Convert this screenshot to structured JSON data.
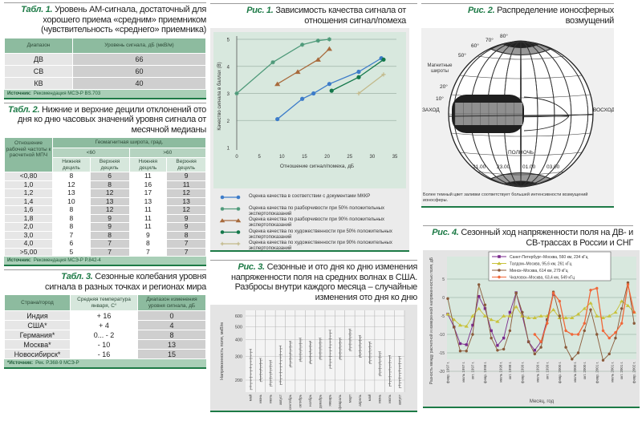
{
  "tab1": {
    "num": "Табл. 1.",
    "title": "Уровень АМ-сигнала, достаточный для хорошего приема «средним» приемником (чувствительность «среднего» приемника)",
    "headers": [
      "Диапазон",
      "Уровень сигнала, дБ (мкВ/м)"
    ],
    "rows": [
      [
        "ДВ",
        "66"
      ],
      [
        "СВ",
        "60"
      ],
      [
        "КВ",
        "40"
      ]
    ],
    "source_label": "Источник:",
    "source": "Рекомендация МСЭ-Р BS.703"
  },
  "tab2": {
    "num": "Табл. 2.",
    "title": "Нижние и верхние децили отклонений ото дня ко дню часовых значений уровня сигнала от месячной медианы",
    "row_header": "Отношение рабочей частоты к расчетной МПЧ",
    "group_header": "Геомагнитная широта, град.",
    "sub_groups": [
      "<60",
      ">60"
    ],
    "cols": [
      "Нижняя дециль",
      "Верхняя дециль",
      "Нижняя дециль",
      "Верхняя дециль"
    ],
    "rows": [
      [
        "<0,80",
        "8",
        "6",
        "11",
        "9"
      ],
      [
        "1,0",
        "12",
        "8",
        "16",
        "11"
      ],
      [
        "1,2",
        "13",
        "12",
        "17",
        "12"
      ],
      [
        "1,4",
        "10",
        "13",
        "13",
        "13"
      ],
      [
        "1,6",
        "8",
        "12",
        "11",
        "12"
      ],
      [
        "1,8",
        "8",
        "9",
        "11",
        "9"
      ],
      [
        "2,0",
        "8",
        "9",
        "11",
        "9"
      ],
      [
        "3,0",
        "7",
        "8",
        "9",
        "8"
      ],
      [
        "4,0",
        "6",
        "7",
        "8",
        "7"
      ],
      [
        ">5,00",
        "5",
        "7",
        "7",
        "7"
      ]
    ],
    "source_label": "Источник:",
    "source": "Рекомендация МСЭ-Р P.842-4"
  },
  "tab3": {
    "num": "Табл. 3.",
    "title": "Сезонные колебания уровня сигнала в разных точках и регионах мира",
    "headers": [
      "Страна/город",
      "Средняя температура января, С°",
      "Диапазон изменения уровня сигнала, дБ"
    ],
    "rows": [
      [
        "Индия",
        "+ 16",
        "0"
      ],
      [
        "США*",
        "+ 4",
        "4"
      ],
      [
        "Германия*",
        "0... - 2",
        "8"
      ],
      [
        "Москва*",
        "- 10",
        "13"
      ],
      [
        "Новосибирск*",
        "- 16",
        "15"
      ]
    ],
    "source_label": "*Источник:",
    "source": "Рек. P.368-9 МСЭ-Р"
  },
  "fig2": {
    "num": "Рис. 2.",
    "title": "Распределение ионосферных возмущений",
    "lat_labels": [
      "80°",
      "70°",
      "60°",
      "50°",
      "20°",
      "10°"
    ],
    "lat_title": "Магнитные широты",
    "west": "ЗАХОД",
    "east": "ВОСХОД",
    "midnight": "ПОЛНОЧЬ",
    "times": [
      "21.00",
      "23.00",
      "01.00",
      "03.00"
    ],
    "caption": "Более темный цвет заливки соответствует большей интенсивности возмущений ионосферы."
  },
  "chart_data": [
    {
      "id": "fig1",
      "type": "line",
      "num": "Рис. 1.",
      "title": "Зависимость качества сигнала от отношения сигнал/помеха",
      "xlabel": "Отношение сигнал/помеха, дБ",
      "ylabel": "Качество сигнала в баллах (B)",
      "xlim": [
        0,
        35
      ],
      "ylim": [
        1,
        5
      ],
      "xticks": [
        "0",
        "5",
        "10",
        "15",
        "20",
        "25",
        "30",
        "35"
      ],
      "yticks": [
        "1",
        "2",
        "3",
        "4",
        "5"
      ],
      "series": [
        {
          "name": "Оценка качества в соответствии с документами МККР",
          "color": "#3d7cc9",
          "marker": "circle",
          "points": [
            [
              9,
              2.05
            ],
            [
              14.5,
              2.8
            ],
            [
              17,
              3.0
            ],
            [
              20.5,
              3.35
            ],
            [
              27,
              3.8
            ],
            [
              32,
              4.3
            ]
          ]
        },
        {
          "name": "Оценка качества по разборчивости при 50% положительных экспертопоказаний",
          "color": "#4f9a7a",
          "marker": "star",
          "points": [
            [
              0,
              3.0
            ],
            [
              8,
              4.15
            ],
            [
              14.5,
              4.8
            ],
            [
              18,
              4.95
            ],
            [
              20.5,
              5.0
            ]
          ]
        },
        {
          "name": "Оценка качества по разборчивости при 90% положительных экспертопоказаний",
          "color": "#a86a3c",
          "marker": "triangle",
          "points": [
            [
              9,
              3.35
            ],
            [
              13.5,
              3.8
            ],
            [
              18,
              4.25
            ],
            [
              20.5,
              4.65
            ]
          ]
        },
        {
          "name": "Оценка качества по художественности при 50% положительных экспертопоказаний",
          "color": "#13774a",
          "marker": "circle",
          "points": [
            [
              21,
              3.1
            ],
            [
              27,
              3.6
            ],
            [
              32.5,
              4.25
            ]
          ]
        },
        {
          "name": "Оценка качества по художественности при 90% положительных экспертопоказаний",
          "color": "#c2b98a",
          "marker": "plus",
          "points": [
            [
              27,
              3.0
            ],
            [
              32.5,
              3.7
            ]
          ]
        }
      ]
    },
    {
      "id": "fig3",
      "type": "scatter",
      "num": "Рис. 3.",
      "title": "Сезонные и ото дня ко дню изменения напряженности поля на средних волнах в США. Разбросы внутри каждого месяца – случайные изменения ото дня ко дню",
      "ylabel": "Напряженность поля, мкВ/м",
      "yscale": "log",
      "ylim": [
        200,
        600
      ],
      "yticks": [
        "200",
        "300",
        "400",
        "500",
        "600"
      ],
      "categories": [
        "май",
        "июнь",
        "июль",
        "август",
        "сентябрь",
        "октябрь",
        "ноябрь",
        "декабрь",
        "январь",
        "февраль",
        "март",
        "апрель",
        "май",
        "июнь",
        "июль",
        "август"
      ],
      "ranges": [
        [
          170,
          340
        ],
        [
          195,
          290
        ],
        [
          180,
          280
        ],
        [
          185,
          360
        ],
        [
          250,
          390
        ],
        [
          275,
          410
        ],
        [
          265,
          390
        ],
        [
          285,
          410
        ],
        [
          245,
          470
        ],
        [
          285,
          410
        ],
        [
          330,
          480
        ],
        [
          295,
          430
        ],
        [
          265,
          385
        ],
        [
          215,
          325
        ],
        [
          180,
          305
        ],
        [
          175,
          300
        ]
      ]
    },
    {
      "id": "fig4",
      "type": "line",
      "num": "Рис. 4.",
      "title": "Сезонный ход напряженности поля на ДВ- и СВ-трассах в России и СНГ",
      "xlabel": "Месяц, год",
      "ylabel": "Разность между расчетной и измеренной напряженностью поля, дБ",
      "ylim": [
        -20,
        5
      ],
      "yticks": [
        "5",
        "0",
        "-5",
        "-10",
        "-15",
        "-20"
      ],
      "xticks": [
        "февр. 1997 г.",
        "июль 1997 г.",
        "окт. 1997 г.",
        "февр. 1998 г.",
        "июль 1998 г.",
        "окт. 1998 г.",
        "февр. 1999 г.",
        "июль 1999 г.",
        "окт. 1999 г.",
        "февр. 2000 г.",
        "июль 2000 г.",
        "окт. 2000 г.",
        "февр. 2001 г.",
        "июль 2001 г.",
        "окт. 2001 г.",
        "февр. 2002 г."
      ],
      "x_step_months": 2,
      "x_start": "февр. 1997 г.",
      "series": [
        {
          "name": "Санкт-Петербург–Москва, 560 км, 234 кГц",
          "color": "#7a2a8c",
          "marker": "square",
          "values": [
            -4.5,
            -8,
            -12.5,
            -12.8,
            -7.5,
            0.3,
            -3,
            -9,
            -13,
            -11,
            -4,
            1.3,
            -5,
            -12,
            -14.3,
            -12,
            -6,
            0.8,
            null,
            null,
            null,
            null,
            null,
            null,
            null,
            null,
            null,
            null,
            null,
            null,
            null
          ]
        },
        {
          "name": "Талдом–Москва, 95,6 км, 261 кГц",
          "color": "#c8c23a",
          "marker": "triangle",
          "values": [
            -4.5,
            -6,
            -7.5,
            -7.8,
            -5,
            -3,
            -5,
            -6,
            -6.5,
            -5,
            -5,
            -2.5,
            -5,
            -5.5,
            -5.5,
            -5,
            -5,
            -3.3,
            -5.5,
            -5.5,
            -5.5,
            -4.5,
            -3,
            -1.5,
            -5,
            -5.5,
            -5,
            -4,
            -1,
            -2.2,
            -4
          ]
        },
        {
          "name": "Минск–Москва, 614 км, 279 кГц",
          "color": "#8a5a3a",
          "marker": "circle",
          "values": [
            -0.3,
            -8,
            -14.5,
            -14.5,
            -10,
            3.5,
            -2,
            -11,
            -14.3,
            -14,
            -9,
            1.2,
            -4,
            -12,
            -15.3,
            -13.5,
            -6,
            1.5,
            -5,
            -13.5,
            -16.7,
            -15,
            -9,
            -3.3,
            -10,
            -17,
            -15.3,
            -11,
            -3,
            4,
            -7
          ]
        },
        {
          "name": "Чкаловск–Москва, 63,4 км, 549 кГц",
          "color": "#f0683a",
          "marker": "star",
          "values": [
            null,
            null,
            null,
            null,
            null,
            null,
            null,
            null,
            null,
            null,
            null,
            null,
            null,
            null,
            -10,
            -12,
            -7,
            1.2,
            -1,
            -9,
            -10,
            -10,
            -7,
            2,
            2.5,
            -9,
            -11,
            -9.5,
            -7,
            3.5,
            -4
          ]
        }
      ]
    }
  ]
}
